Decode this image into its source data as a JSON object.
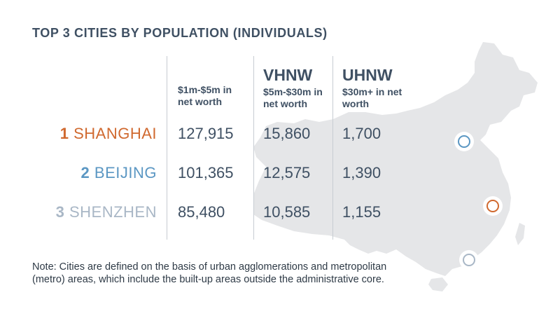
{
  "chart_data": {
    "type": "table",
    "title": "TOP 3 CITIES BY POPULATION (INDIVIDUALS)",
    "columns": [
      {
        "heading": "",
        "sub": "$1m-$5m in net worth"
      },
      {
        "heading": "VHNW",
        "sub": "$5m-$30m in net worth"
      },
      {
        "heading": "UHNW",
        "sub": "$30m+ in net worth"
      }
    ],
    "rows": [
      {
        "rank": "1",
        "city": "SHANGHAI",
        "color": "#d0692f",
        "values": [
          "127,915",
          "15,860",
          "1,700"
        ]
      },
      {
        "rank": "2",
        "city": "BEIJING",
        "color": "#5b97c3",
        "values": [
          "101,365",
          "12,575",
          "1,390"
        ]
      },
      {
        "rank": "3",
        "city": "SHENZHEN",
        "color": "#a9b7c6",
        "values": [
          "85,480",
          "10,585",
          "1,155"
        ]
      }
    ],
    "note": "Note: Cities are defined on the basis of urban agglomerations and metropolitan (metro) areas, which include the built-up areas outside the administrative core."
  },
  "colors": {
    "map_fill": "#e5e6e8",
    "text": "#3f5063",
    "divider": "#c7ccd2"
  },
  "map": {
    "icon": "china-map",
    "markers": [
      {
        "city": "BEIJING",
        "color": "#5b97c3"
      },
      {
        "city": "SHANGHAI",
        "color": "#d0692f"
      },
      {
        "city": "SHENZHEN",
        "color": "#a9b7c6"
      }
    ]
  }
}
